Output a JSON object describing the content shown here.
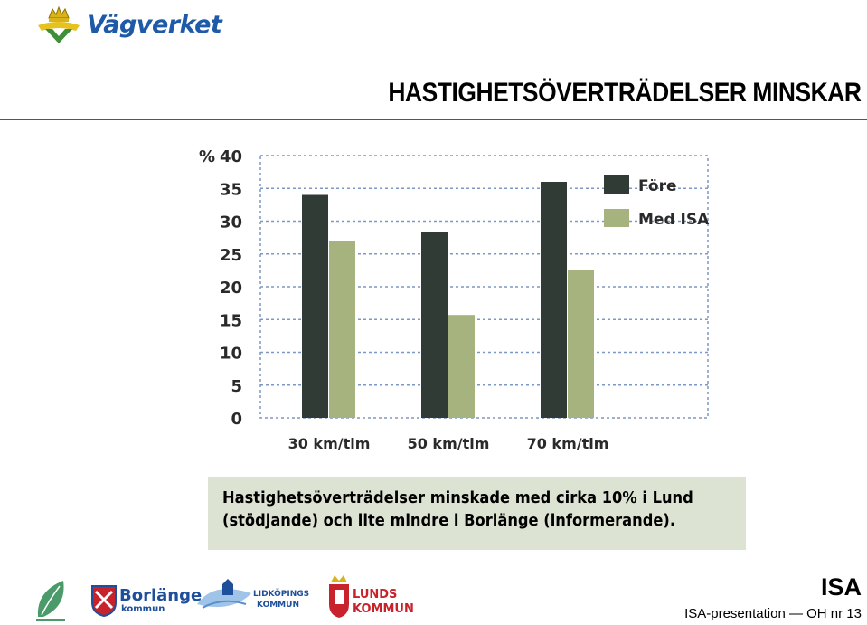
{
  "header": {
    "brand_name": "Vägverket",
    "title": "HASTIGHETSÖVERTRÄDELSER MINSKAR"
  },
  "chart_data": {
    "type": "bar",
    "categories": [
      "30 km/tim",
      "50 km/tim",
      "70 km/tim"
    ],
    "series": [
      {
        "name": "Före",
        "values": [
          34,
          28.3,
          36
        ],
        "color": "#2f3b34"
      },
      {
        "name": "Med ISA",
        "values": [
          27,
          15.7,
          22.5
        ],
        "color": "#a6b37e"
      }
    ],
    "y_unit": "%",
    "yticks": [
      0,
      5,
      10,
      15,
      20,
      25,
      30,
      35,
      40
    ],
    "ylim": [
      0,
      40
    ],
    "grid": "dashed-horizontal",
    "legend_position": "top-right"
  },
  "caption": {
    "line1": "Hastighetsöverträdelser minskade med cirka 10% i Lund",
    "line2": "(stödjande) och lite mindre i Borlänge (informerande)."
  },
  "footer": {
    "logos": {
      "borlange": "Borlänge",
      "borlange_sub": "kommun",
      "lidkoping": "LIDKÖPINGS",
      "lidkoping_sub": "KOMMUN",
      "lund": "LUNDS",
      "lund_sub": "KOMMUN"
    },
    "isa_mark": "ISA",
    "slide_ref": "ISA-presentation — OH nr 13"
  }
}
